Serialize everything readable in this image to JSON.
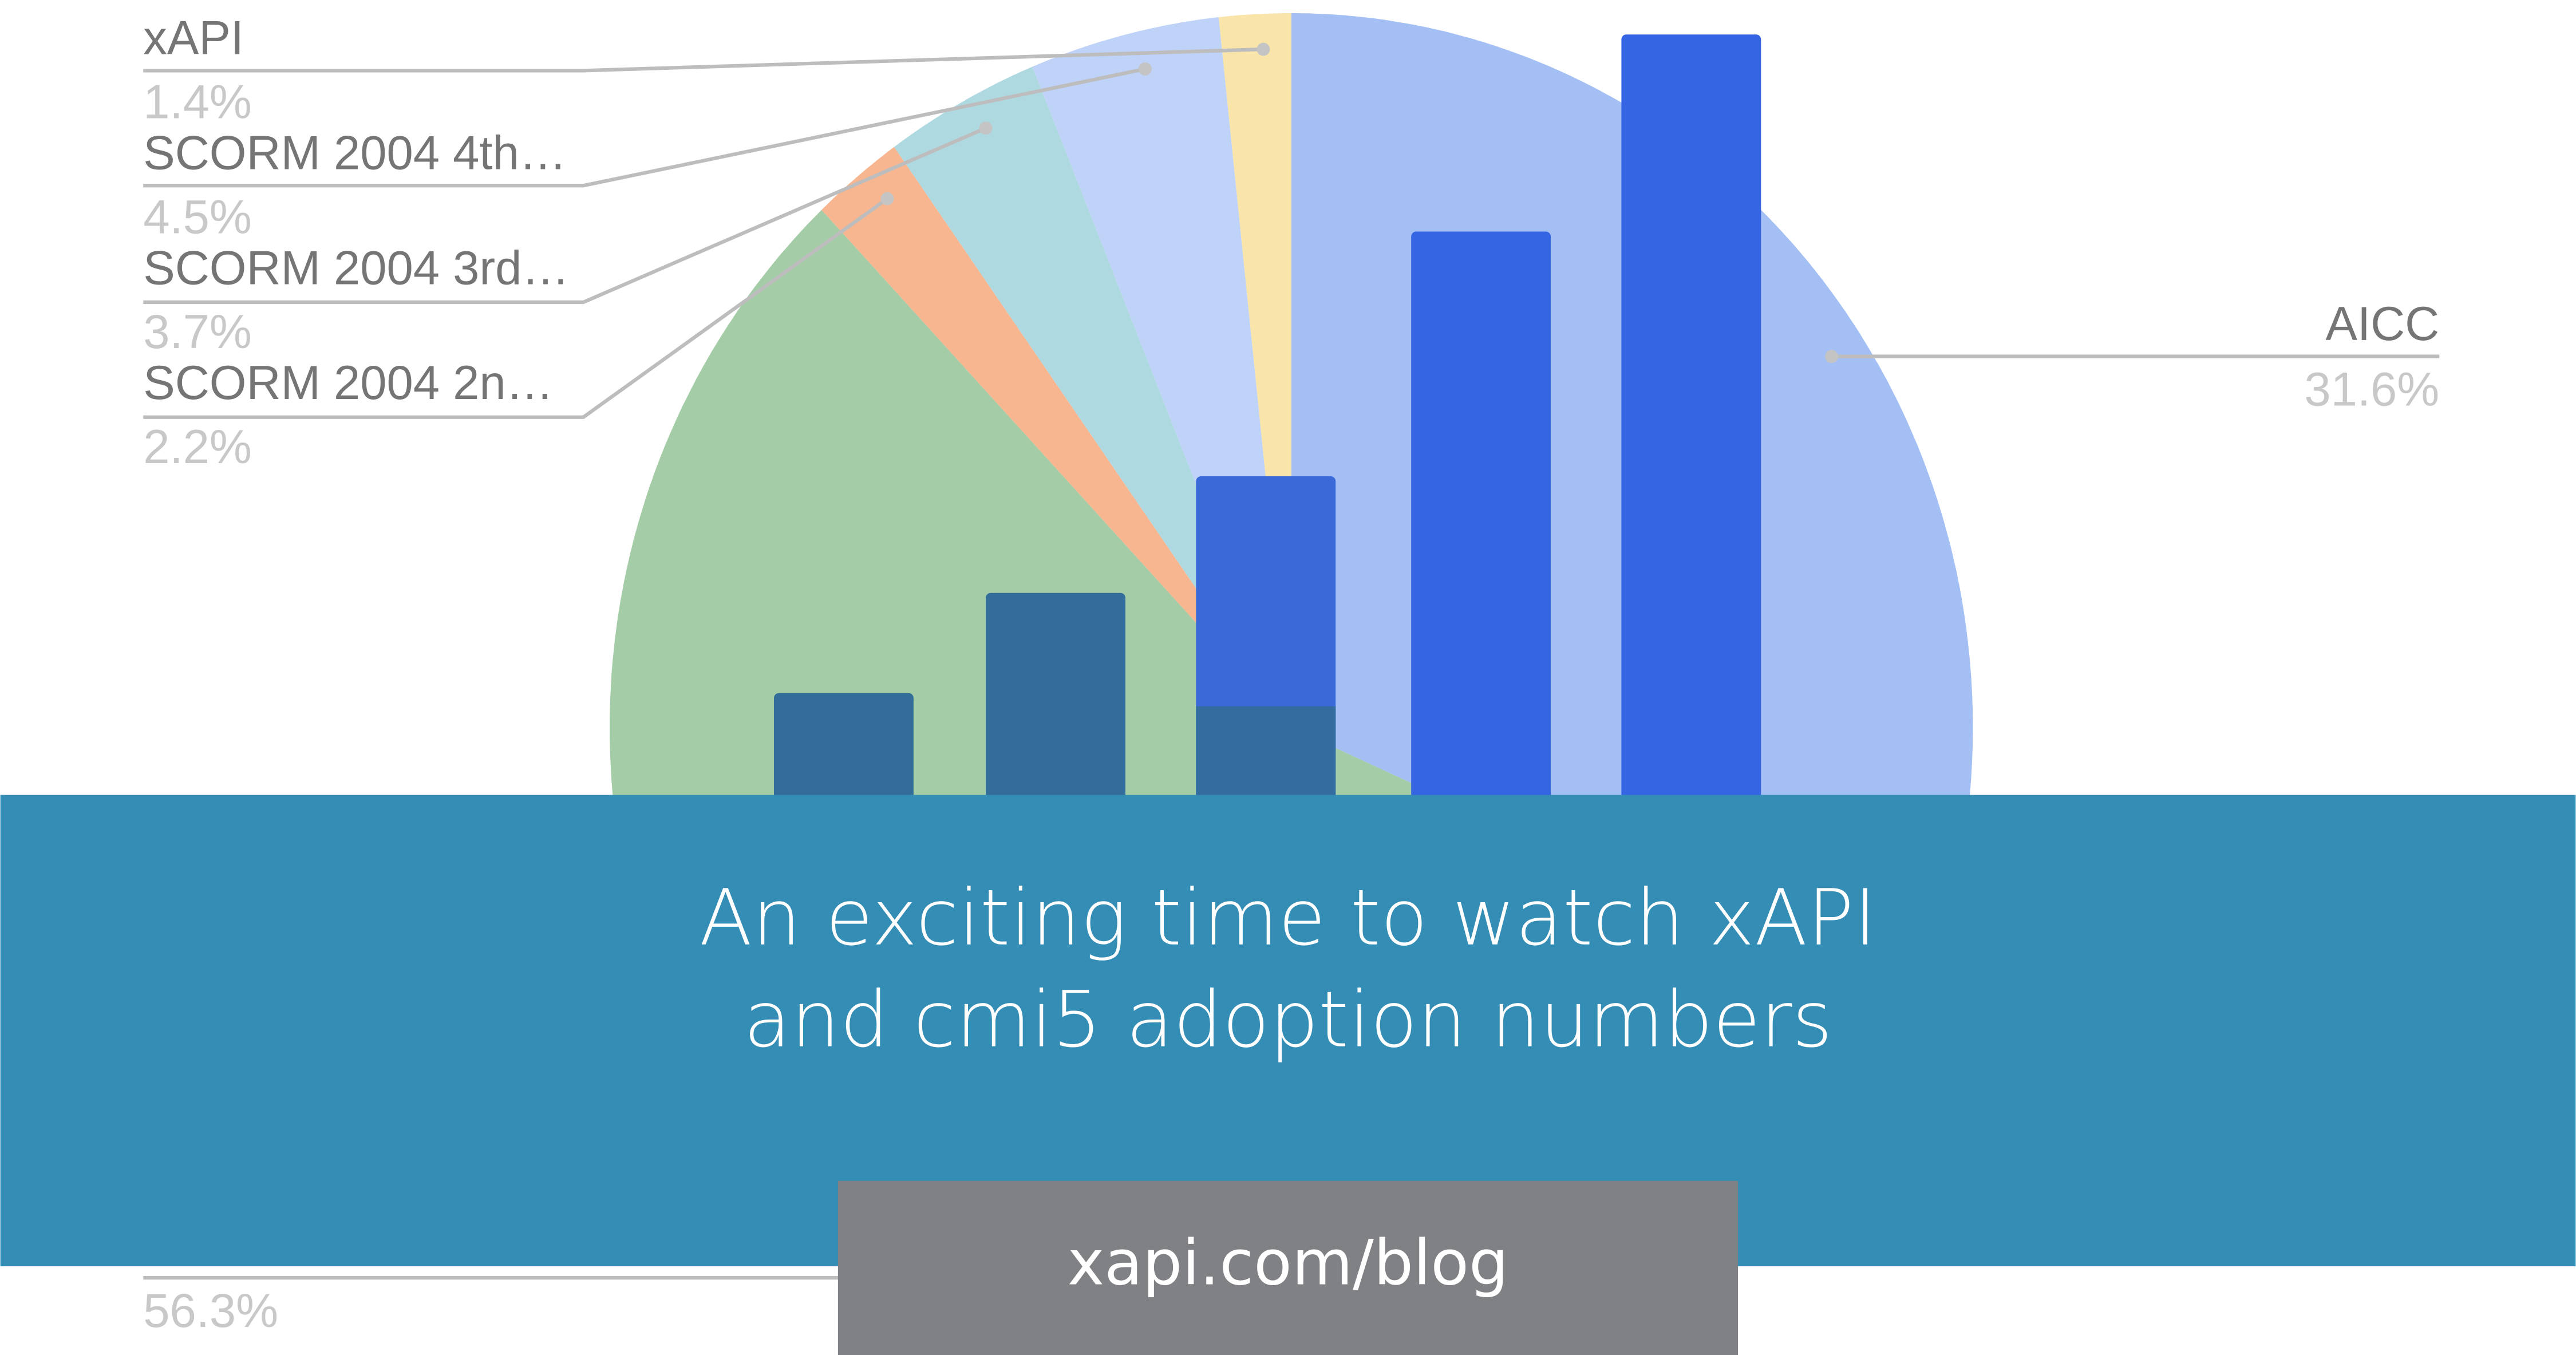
{
  "chart_data": {
    "type": "pie",
    "start": "12 o'clock, clockwise",
    "slices": [
      {
        "label": "AICC",
        "value": 31.6,
        "value_label": "31.6%",
        "color": "#a3bff4"
      },
      {
        "label": "",
        "value": 56.3,
        "value_label": "56.3%",
        "color": "#a4cda7"
      },
      {
        "label": "SCORM 2004 2n…",
        "value": 2.2,
        "value_label": "2.2%",
        "color": "#f7b690"
      },
      {
        "label": "SCORM 2004 3rd…",
        "value": 3.7,
        "value_label": "3.7%",
        "color": "#afd9e0"
      },
      {
        "label": "SCORM 2004 4th…",
        "value": 4.5,
        "value_label": "4.5%",
        "color": "#bfd2f7"
      },
      {
        "label": "xAPI",
        "value": 1.4,
        "value_label": "1.4%",
        "color": "#f9e4aa"
      }
    ],
    "legend": "callout labels"
  },
  "banner": {
    "title_line1": "An exciting time to watch xAPI",
    "title_line2": "and cmi5 adoption numbers",
    "url": "xapi.com/blog",
    "color": "#348db5",
    "url_box_color": "#808185"
  },
  "colors": {
    "bar_dark": "#336e9a",
    "bar_blue": "#3565e3"
  }
}
